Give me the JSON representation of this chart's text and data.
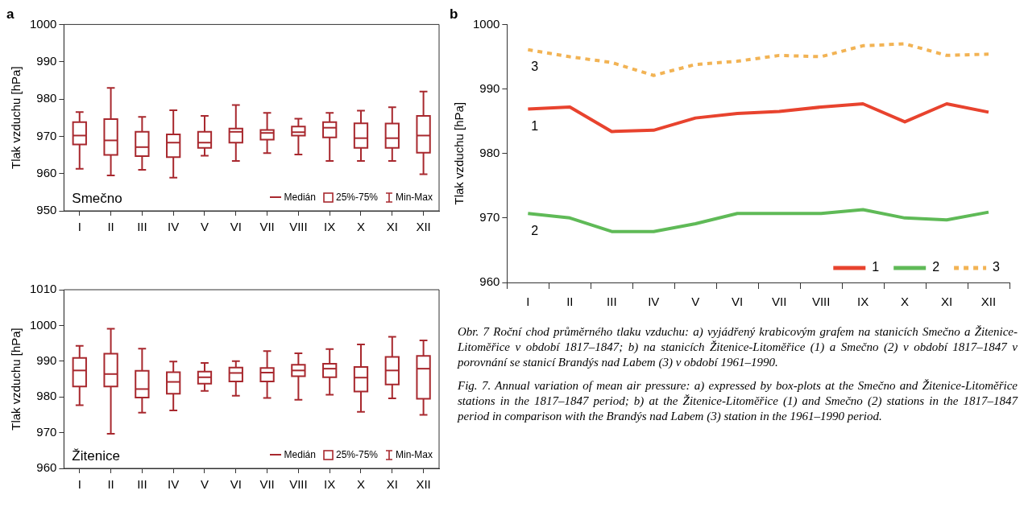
{
  "chart_data": [
    {
      "type": "box",
      "title": "a",
      "ylabel": "Tlak vzduchu [hPa]",
      "categories": [
        "I",
        "II",
        "III",
        "IV",
        "V",
        "VI",
        "VII",
        "VIII",
        "IX",
        "X",
        "XI",
        "XII"
      ],
      "color": "#a8282e",
      "ylim": [
        950,
        1000
      ],
      "yticks": [
        950,
        960,
        970,
        980,
        990,
        1000
      ],
      "annotations": [
        "Smečno",
        "Medián",
        "25%-75%",
        "Min-Max"
      ],
      "boxes": [
        {
          "low": 961.3,
          "q1": 967.8,
          "median": 970.2,
          "q3": 973.8,
          "high": 976.5
        },
        {
          "low": 959.5,
          "q1": 965,
          "median": 968.9,
          "q3": 974.6,
          "high": 983
        },
        {
          "low": 961,
          "q1": 964.7,
          "median": 967.1,
          "q3": 971.2,
          "high": 975.2
        },
        {
          "low": 958.9,
          "q1": 964.4,
          "median": 968.3,
          "q3": 970.5,
          "high": 977
        },
        {
          "low": 964.8,
          "q1": 966.9,
          "median": 968.3,
          "q3": 971.2,
          "high": 975.5
        },
        {
          "low": 963.4,
          "q1": 968.3,
          "median": 971.2,
          "q3": 972.1,
          "high": 978.4
        },
        {
          "low": 965.5,
          "q1": 969.1,
          "median": 970.9,
          "q3": 971.7,
          "high": 976.3
        },
        {
          "low": 965.1,
          "q1": 970.2,
          "median": 971.1,
          "q3": 972.6,
          "high": 974.7
        },
        {
          "low": 963.4,
          "q1": 969.7,
          "median": 972.3,
          "q3": 973.8,
          "high": 976.3
        },
        {
          "low": 963.4,
          "q1": 966.9,
          "median": 969.5,
          "q3": 973.5,
          "high": 976.9
        },
        {
          "low": 963.4,
          "q1": 966.9,
          "median": 969.5,
          "q3": 973.4,
          "high": 977.8
        },
        {
          "low": 959.8,
          "q1": 965.6,
          "median": 970.2,
          "q3": 975.5,
          "high": 982
        }
      ]
    },
    {
      "type": "box",
      "ylabel": "Tlak vzduchu [hPa]",
      "categories": [
        "I",
        "II",
        "III",
        "IV",
        "V",
        "VI",
        "VII",
        "VIII",
        "IX",
        "X",
        "XI",
        "XII"
      ],
      "color": "#a8282e",
      "ylim": [
        960,
        1010
      ],
      "yticks": [
        960,
        970,
        980,
        990,
        1000,
        1010
      ],
      "annotations": [
        "Žitenice",
        "Medián",
        "25%-75%",
        "Min-Max"
      ],
      "boxes": [
        {
          "low": 977.7,
          "q1": 982.9,
          "median": 987.4,
          "q3": 990.9,
          "high": 994.3
        },
        {
          "low": 969.7,
          "q1": 982.9,
          "median": 986.4,
          "q3": 992.1,
          "high": 999.1
        },
        {
          "low": 975.6,
          "q1": 979.8,
          "median": 982.2,
          "q3": 987.3,
          "high": 993.5
        },
        {
          "low": 976.2,
          "q1": 980.9,
          "median": 984.2,
          "q3": 986.9,
          "high": 989.9
        },
        {
          "low": 981.7,
          "q1": 983.7,
          "median": 985.5,
          "q3": 987.1,
          "high": 989.5
        },
        {
          "low": 980.3,
          "q1": 984.3,
          "median": 986.7,
          "q3": 988.2,
          "high": 990
        },
        {
          "low": 979.7,
          "q1": 984.3,
          "median": 986.8,
          "q3": 988.1,
          "high": 992.8
        },
        {
          "low": 979.2,
          "q1": 985.8,
          "median": 987.4,
          "q3": 989,
          "high": 992.2
        },
        {
          "low": 980.6,
          "q1": 985.5,
          "median": 987.9,
          "q3": 989.3,
          "high": 993.4
        },
        {
          "low": 975.8,
          "q1": 981.5,
          "median": 985.4,
          "q3": 988.4,
          "high": 994.7
        },
        {
          "low": 979.6,
          "q1": 983.5,
          "median": 987.4,
          "q3": 991.2,
          "high": 996.8
        },
        {
          "low": 975,
          "q1": 979.5,
          "median": 987.9,
          "q3": 991.5,
          "high": 995.8
        }
      ]
    },
    {
      "type": "line",
      "title": "b",
      "ylabel": "Tlak vzduchu [hPa]",
      "categories": [
        "I",
        "II",
        "III",
        "IV",
        "V",
        "VI",
        "VII",
        "VIII",
        "IX",
        "X",
        "XI",
        "XII"
      ],
      "ylim": [
        960,
        1000
      ],
      "yticks": [
        960,
        970,
        980,
        990,
        1000
      ],
      "legend": "bottom right",
      "marker": "none",
      "series": [
        {
          "name": "1",
          "color": "#e8432e",
          "line_style": "solid",
          "values": [
            986.9,
            987.2,
            983.4,
            983.6,
            985.5,
            986.2,
            986.5,
            987.2,
            987.7,
            984.9,
            987.7,
            986.4
          ]
        },
        {
          "name": "2",
          "color": "#5fba57",
          "line_style": "solid",
          "values": [
            970.7,
            970,
            967.9,
            967.9,
            969.1,
            970.7,
            970.7,
            970.7,
            971.3,
            970,
            969.7,
            970.9
          ]
        },
        {
          "name": "3",
          "color": "#f2b354",
          "line_style": "dotted",
          "values": [
            996.1,
            995,
            994.1,
            992.1,
            993.8,
            994.3,
            995.2,
            995,
            996.7,
            997,
            995.2,
            995.4
          ]
        }
      ],
      "annotations": [
        "Obr. 7 Roční chod průměrného tlaku vzduchu: a) vyjádřený krabicovým grafem na stanicích Smečno a Žitenice-Litoměřice v období 1817–1847; b) na stanicích Žitenice-Litoměřice (1) a Smečno (2) v období 1817–1847 v porovnání se stanicí Brandýs nad Labem (3) v období 1961–1990.",
        "Fig. 7. Annual variation of mean air pressure: a) expressed by box-plots at the Smečno and Žitenice-Litoměřice stations in the 1817–1847 period; b) at the Žitenice-Litoměřice (1) and Smečno (2) stations in the 1817–1847 period in comparison with the Brandýs nad Labem (3) station in the 1961–1990 period."
      ]
    }
  ]
}
